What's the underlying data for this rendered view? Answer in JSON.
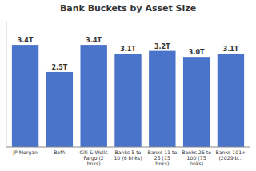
{
  "chart_data": {
    "type": "bar",
    "title": "Bank Buckets by Asset Size",
    "categories": [
      "JP Morgan",
      "BofA",
      "Citi & Wells Fargo (2\nbnks)",
      "Banks 5 to 10 (6 bnks)",
      "Banks 11 to 25 (15\nbnks)",
      "Banks 26 to 100 (75\nbnks)",
      "Banks 101+\n(2029 b..."
    ],
    "values": [
      3.4,
      2.5,
      3.4,
      3.1,
      3.2,
      3.0,
      3.1
    ],
    "value_labels": [
      "3.4T",
      "2.5T",
      "3.4T",
      "3.1T",
      "3.2T",
      "3.0T",
      "3.1T"
    ],
    "color": "#4a74c9",
    "ylim": [
      0,
      4.2
    ],
    "data_labels": true,
    "tick_labels": "x",
    "grid": false
  }
}
